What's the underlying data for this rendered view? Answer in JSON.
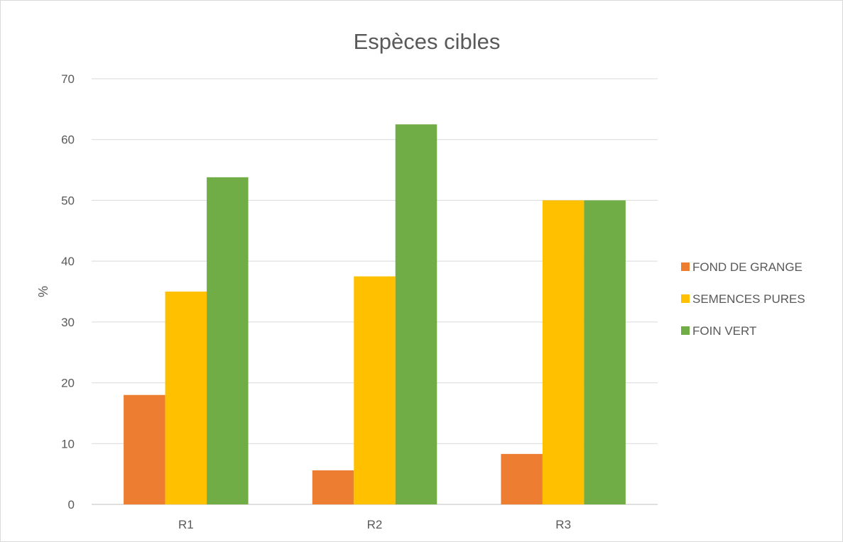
{
  "chart_data": {
    "type": "bar",
    "title": "Espèces cibles",
    "xlabel": "",
    "ylabel": "%",
    "ylim": [
      0,
      70
    ],
    "yticks": [
      0,
      10,
      20,
      30,
      40,
      50,
      60,
      70
    ],
    "grid": true,
    "legend_position": "right",
    "categories": [
      "R1",
      "R2",
      "R3"
    ],
    "series": [
      {
        "name": "FOND DE GRANGE",
        "color": "#ED7D31",
        "values": [
          18,
          5.6,
          8.3
        ]
      },
      {
        "name": "SEMENCES PURES",
        "color": "#FFC000",
        "values": [
          35,
          37.5,
          50
        ]
      },
      {
        "name": "FOIN VERT",
        "color": "#70AD47",
        "values": [
          53.8,
          62.5,
          50
        ]
      }
    ]
  }
}
